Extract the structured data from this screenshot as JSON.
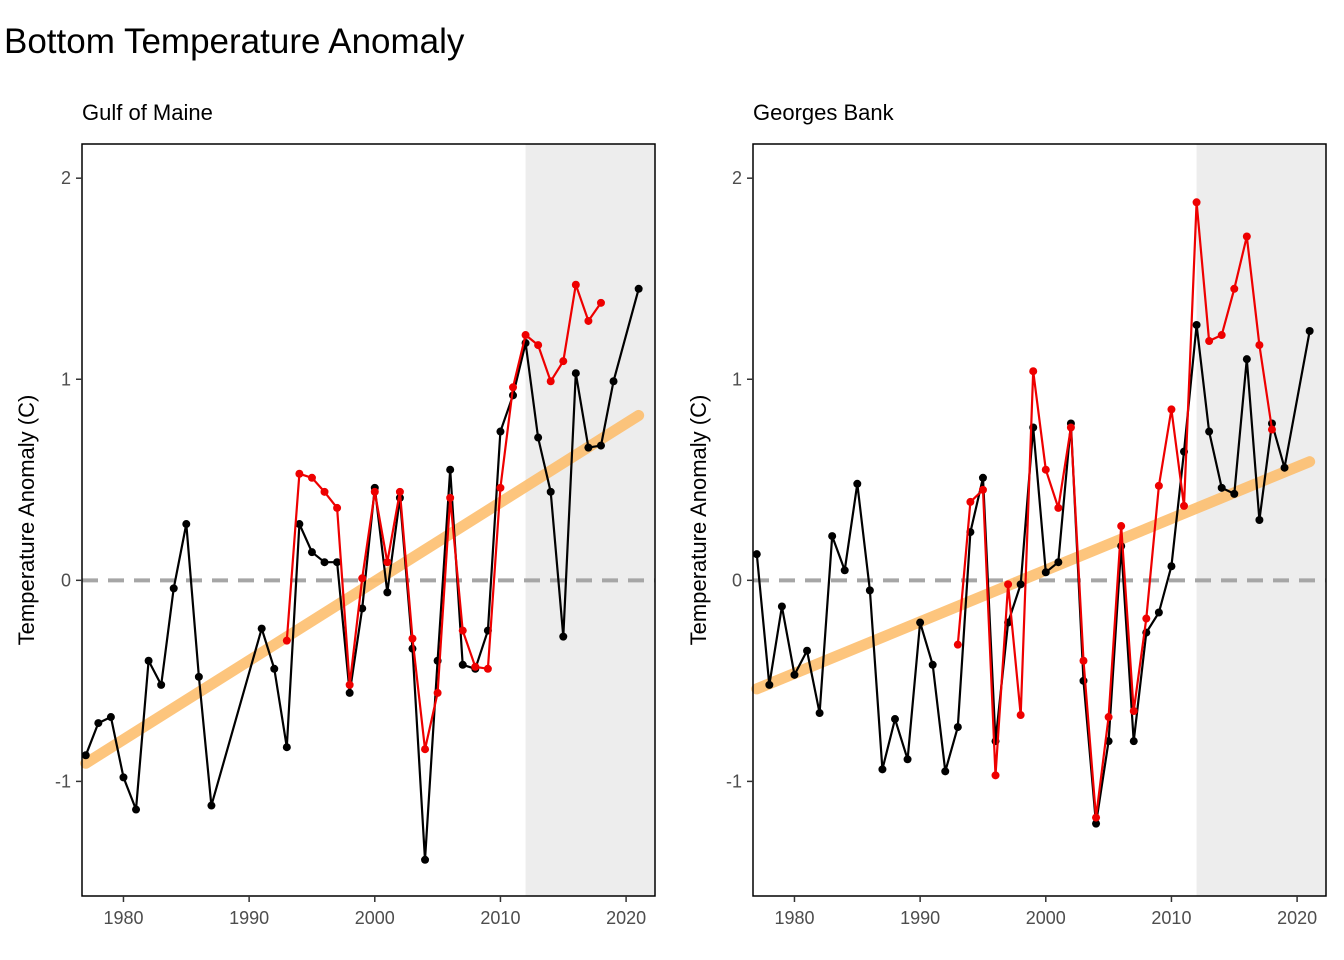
{
  "title": "Bottom Temperature Anomaly",
  "colors": {
    "observed": "#000000",
    "model": "#ee0000",
    "trend": "#fdbf6f",
    "zero_line": "#a6a6a6",
    "recent_shade": "#ededed"
  },
  "chart_data": [
    {
      "type": "line",
      "subtitle": "Gulf of Maine",
      "ylabel": "Temperature Anomaly (C)",
      "xlim": [
        1976.7,
        2022.3
      ],
      "ylim": [
        -1.57,
        2.17
      ],
      "x_ticks": [
        1980,
        1990,
        2000,
        2010,
        2020
      ],
      "y_ticks": [
        -1,
        0,
        1,
        2
      ],
      "shaded_region": [
        2012,
        2022.3
      ],
      "reference_line": 0,
      "trend": {
        "x": [
          1977,
          2021
        ],
        "y": [
          -0.91,
          0.82
        ]
      },
      "series": [
        {
          "role": "observed",
          "x": [
            1977,
            1978,
            1979,
            1980,
            1981,
            1982,
            1983,
            1984,
            1985,
            1986,
            1987,
            1991,
            1992,
            1993,
            1994,
            1995,
            1996,
            1997,
            1998,
            1999,
            2000,
            2001,
            2002,
            2003,
            2004,
            2005,
            2006,
            2007,
            2008,
            2009,
            2010,
            2011,
            2012,
            2013,
            2014,
            2015,
            2016,
            2017,
            2018,
            2019,
            2021
          ],
          "y": [
            -0.87,
            -0.71,
            -0.68,
            -0.98,
            -1.14,
            -0.4,
            -0.52,
            -0.04,
            0.28,
            -0.48,
            -1.12,
            -0.24,
            -0.44,
            -0.83,
            0.28,
            0.14,
            0.09,
            0.09,
            -0.56,
            -0.14,
            0.46,
            -0.06,
            0.41,
            -0.34,
            -1.39,
            -0.4,
            0.55,
            -0.42,
            -0.44,
            -0.25,
            0.74,
            0.92,
            1.18,
            0.71,
            0.44,
            -0.28,
            1.03,
            0.66,
            0.67,
            0.99,
            1.45
          ]
        },
        {
          "role": "model",
          "x": [
            1993,
            1994,
            1995,
            1996,
            1997,
            1998,
            1999,
            2000,
            2001,
            2002,
            2003,
            2004,
            2005,
            2006,
            2007,
            2008,
            2009,
            2010,
            2011,
            2012,
            2013,
            2014,
            2015,
            2016,
            2017,
            2018
          ],
          "y": [
            -0.3,
            0.53,
            0.51,
            0.44,
            0.36,
            -0.52,
            0.01,
            0.44,
            0.09,
            0.44,
            -0.29,
            -0.84,
            -0.56,
            0.41,
            -0.25,
            -0.43,
            -0.44,
            0.46,
            0.96,
            1.22,
            1.17,
            0.99,
            1.09,
            1.47,
            1.29,
            1.38
          ]
        }
      ]
    },
    {
      "type": "line",
      "subtitle": "Georges Bank",
      "ylabel": "Temperature Anomaly (C)",
      "xlim": [
        1976.7,
        2022.3
      ],
      "ylim": [
        -1.57,
        2.17
      ],
      "x_ticks": [
        1980,
        1990,
        2000,
        2010,
        2020
      ],
      "y_ticks": [
        -1,
        0,
        1,
        2
      ],
      "shaded_region": [
        2012,
        2022.3
      ],
      "reference_line": 0,
      "trend": {
        "x": [
          1977,
          2021
        ],
        "y": [
          -0.54,
          0.59
        ]
      },
      "series": [
        {
          "role": "observed",
          "x": [
            1977,
            1978,
            1979,
            1980,
            1981,
            1982,
            1983,
            1984,
            1985,
            1986,
            1987,
            1988,
            1989,
            1990,
            1991,
            1992,
            1993,
            1994,
            1995,
            1996,
            1997,
            1998,
            1999,
            2000,
            2001,
            2002,
            2003,
            2004,
            2005,
            2006,
            2007,
            2008,
            2009,
            2010,
            2011,
            2012,
            2013,
            2014,
            2015,
            2016,
            2017,
            2018,
            2019,
            2021
          ],
          "y": [
            0.13,
            -0.52,
            -0.13,
            -0.47,
            -0.35,
            -0.66,
            0.22,
            0.05,
            0.48,
            -0.05,
            -0.94,
            -0.69,
            -0.89,
            -0.21,
            -0.42,
            -0.95,
            -0.73,
            0.24,
            0.51,
            -0.8,
            -0.21,
            -0.02,
            0.76,
            0.04,
            0.09,
            0.78,
            -0.5,
            -1.21,
            -0.8,
            0.17,
            -0.8,
            -0.26,
            -0.16,
            0.07,
            0.64,
            1.27,
            0.74,
            0.46,
            0.43,
            1.1,
            0.3,
            0.78,
            0.56,
            1.24
          ]
        },
        {
          "role": "model",
          "x": [
            1993,
            1994,
            1995,
            1996,
            1997,
            1998,
            1999,
            2000,
            2001,
            2002,
            2003,
            2004,
            2005,
            2006,
            2007,
            2008,
            2009,
            2010,
            2011,
            2012,
            2013,
            2014,
            2015,
            2016,
            2017,
            2018
          ],
          "y": [
            -0.32,
            0.39,
            0.45,
            -0.97,
            -0.02,
            -0.67,
            1.04,
            0.55,
            0.36,
            0.76,
            -0.4,
            -1.18,
            -0.68,
            0.27,
            -0.65,
            -0.19,
            0.47,
            0.85,
            0.37,
            1.88,
            1.19,
            1.22,
            1.45,
            1.71,
            1.17,
            0.75
          ]
        }
      ]
    }
  ]
}
